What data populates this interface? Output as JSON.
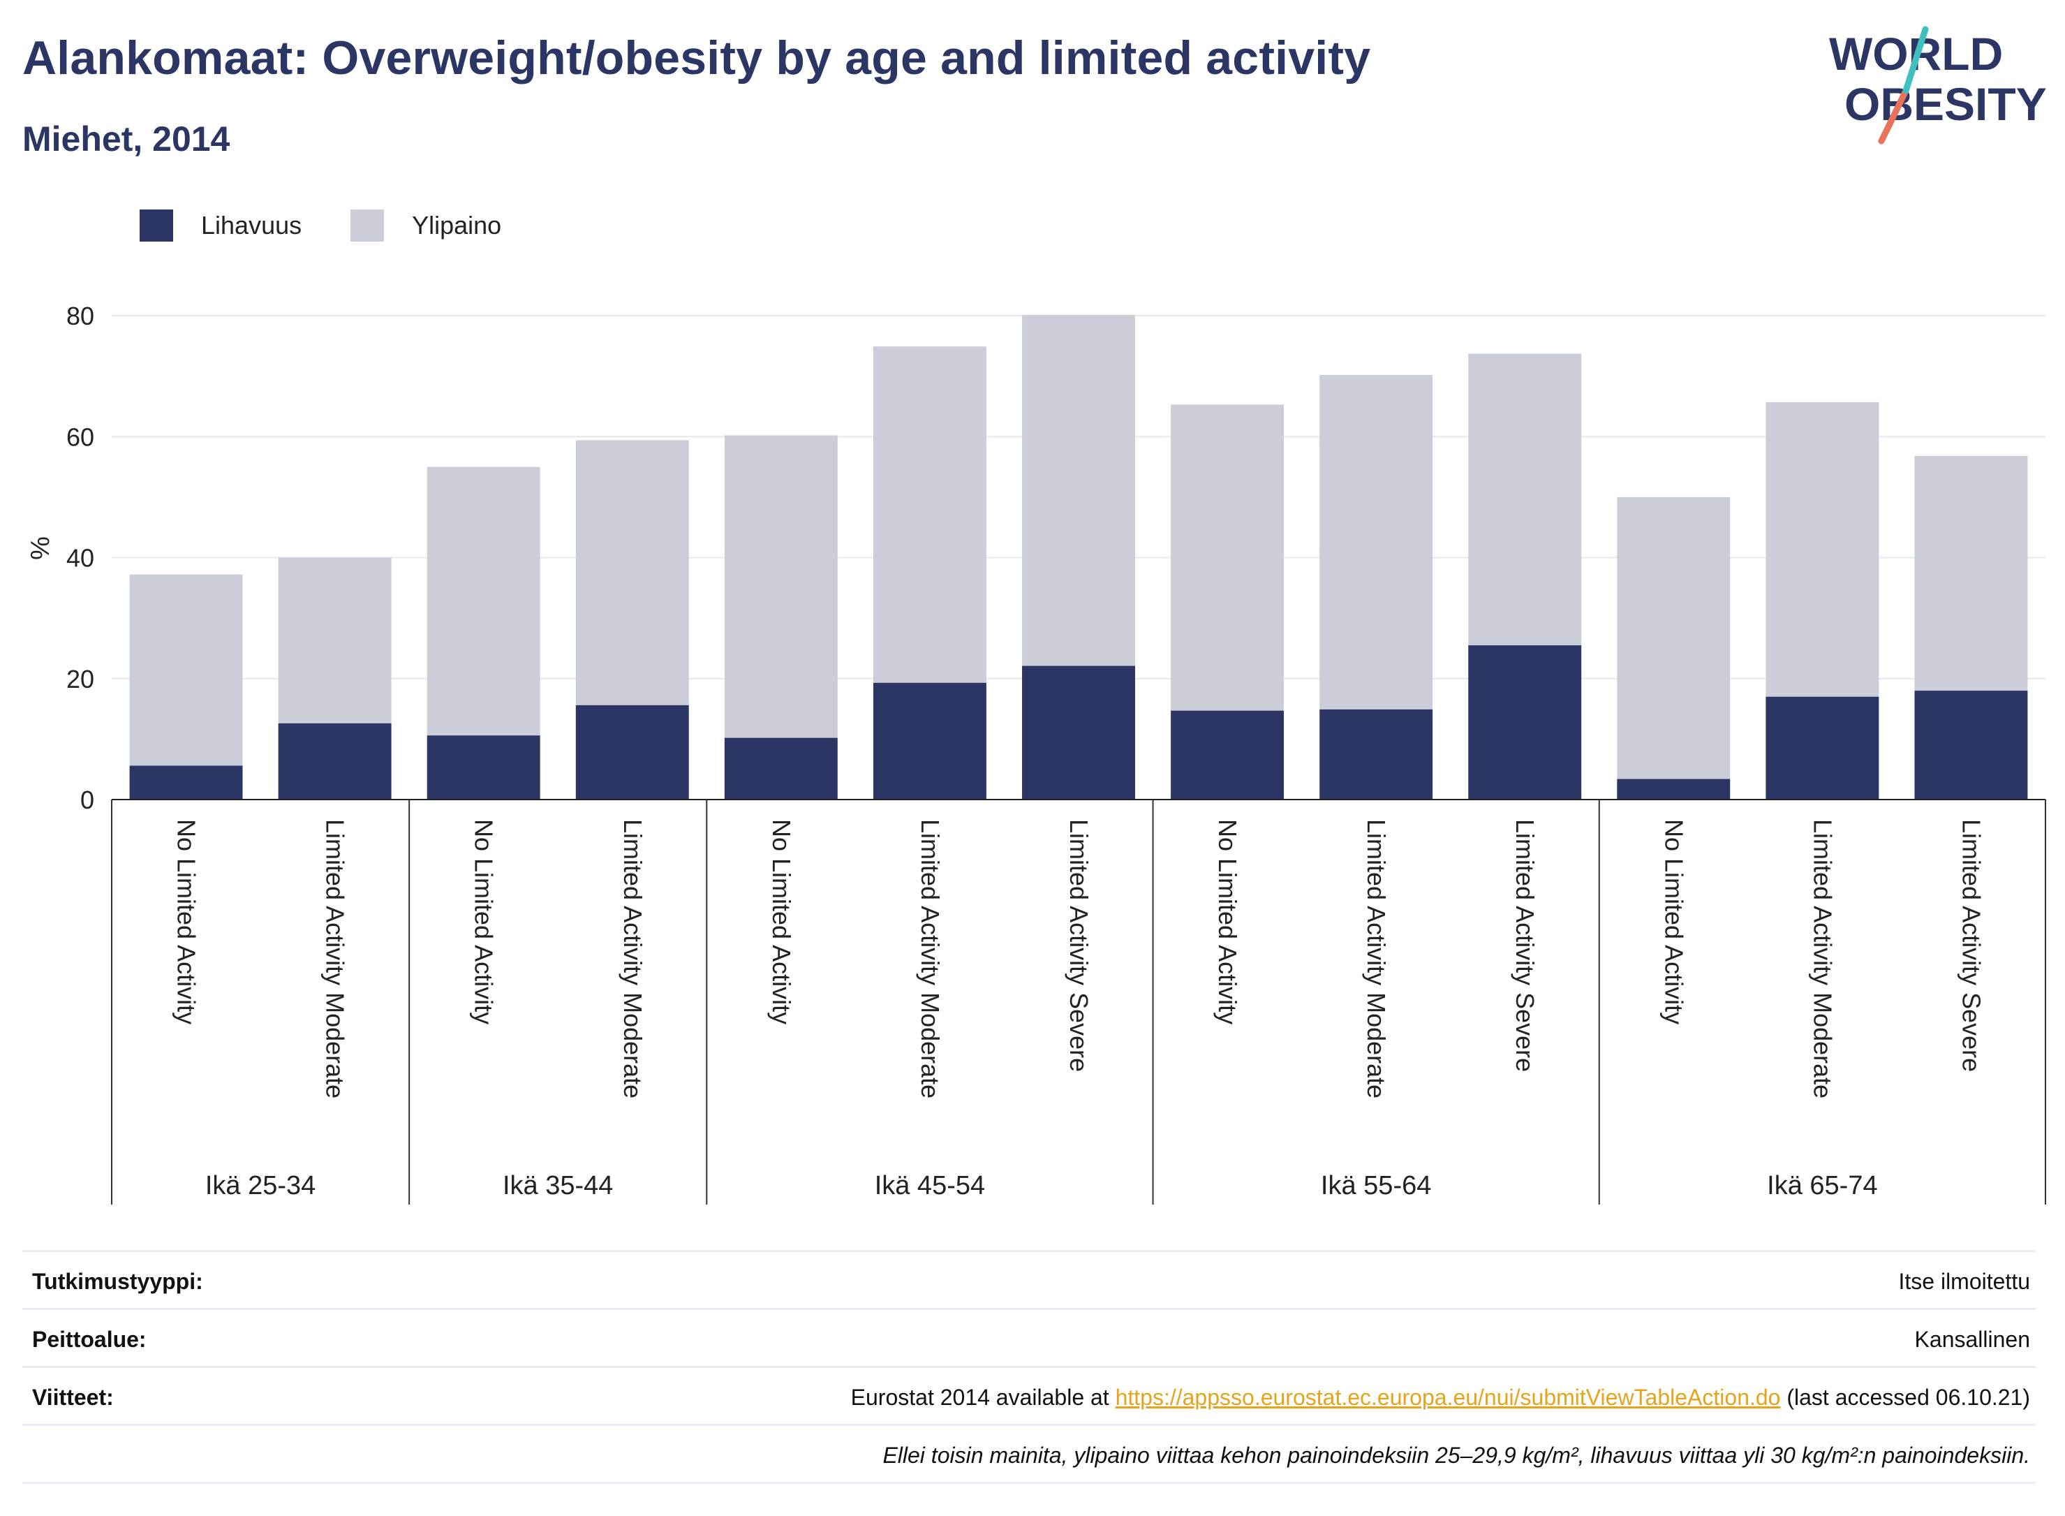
{
  "header": {
    "title": "Alankomaat: Overweight/obesity by age and limited activity",
    "subtitle": "Miehet, 2014"
  },
  "logo": {
    "line1": "WORLD",
    "line2": "OBESITY"
  },
  "colors": {
    "obesity": "#2b3664",
    "overweight": "#cbcdd8",
    "title": "#2b3664",
    "link": "#e5a41c"
  },
  "legend": [
    {
      "label": "Lihavuus",
      "color": "#2b3664"
    },
    {
      "label": "Ylipaino",
      "color": "#cbcdd8"
    }
  ],
  "chart_data": {
    "type": "bar",
    "stacked": true,
    "ylabel": "%",
    "ylim": [
      0,
      80
    ],
    "yticks": [
      0,
      20,
      40,
      60,
      80
    ],
    "grid": true,
    "legend_position": "top-left",
    "groups": [
      {
        "label": "Ikä 25-34",
        "categories": [
          "No Limited Activity",
          "Limited Activity Moderate"
        ]
      },
      {
        "label": "Ikä 35-44",
        "categories": [
          "No Limited Activity",
          "Limited Activity Moderate"
        ]
      },
      {
        "label": "Ikä 45-54",
        "categories": [
          "No Limited Activity",
          "Limited Activity Moderate",
          "Limited Activity Severe"
        ]
      },
      {
        "label": "Ikä 55-64",
        "categories": [
          "No Limited Activity",
          "Limited Activity Moderate",
          "Limited Activity Severe"
        ]
      },
      {
        "label": "Ikä 65-74",
        "categories": [
          "No Limited Activity",
          "Limited Activity Moderate",
          "Limited Activity Severe"
        ]
      }
    ],
    "series": [
      {
        "name": "Lihavuus",
        "values": [
          5.6,
          12.6,
          10.6,
          15.6,
          10.2,
          19.3,
          22.1,
          14.7,
          14.9,
          25.5,
          3.4,
          17.0,
          18.0
        ]
      },
      {
        "name": "Ylipaino",
        "values": [
          31.6,
          27.4,
          44.4,
          43.8,
          50.0,
          55.6,
          58.0,
          50.6,
          55.3,
          48.2,
          46.6,
          48.7,
          38.8
        ]
      }
    ]
  },
  "meta": {
    "rows": [
      {
        "key": "Tutkimustyyppi:",
        "value": "Itse ilmoitettu"
      },
      {
        "key": "Peittoalue:",
        "value": "Kansallinen"
      },
      {
        "key": "Viitteet:",
        "prefix": "Eurostat 2014 available at ",
        "link": "https://appsso.eurostat.ec.europa.eu/nui/submitViewTableAction.do",
        "suffix": " (last accessed 06.10.21)"
      }
    ],
    "note": "Ellei toisin mainita, ylipaino viittaa kehon painoindeksiin 25–29,9 kg/m², lihavuus viittaa yli 30 kg/m²:n painoindeksiin."
  }
}
